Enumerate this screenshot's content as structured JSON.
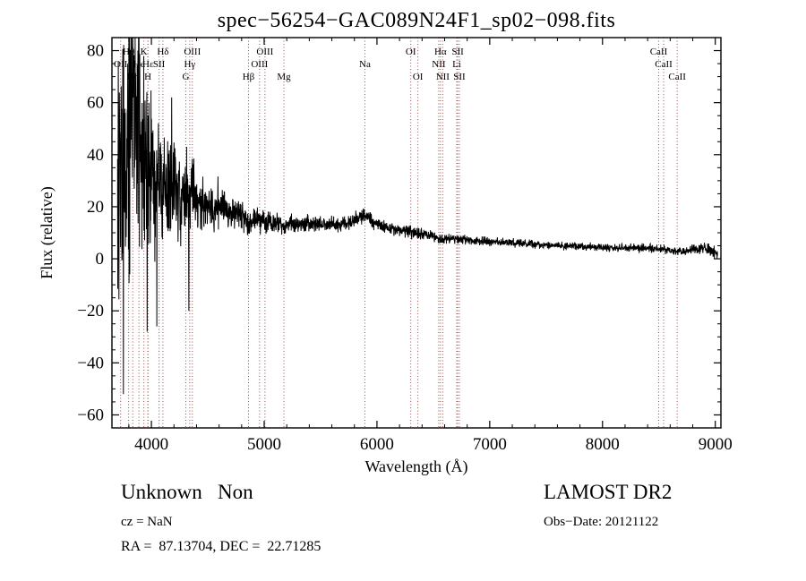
{
  "chart_data": {
    "type": "line",
    "title": "spec−56254−GAC089N24F1_sp02−098.fits",
    "xlabel": "Wavelength (Å)",
    "ylabel": "Flux (relative)",
    "xlim": [
      3650,
      9050
    ],
    "ylim": [
      -65,
      85
    ],
    "xticks": [
      4000,
      5000,
      6000,
      7000,
      8000,
      9000
    ],
    "yticks": [
      -60,
      -40,
      -20,
      0,
      20,
      40,
      60,
      80
    ],
    "x_minor_step": 200,
    "y_minor_step": 5,
    "grid": "off",
    "line_color": "#000000",
    "marker_color": "#9a4f4f",
    "spectral_lines": [
      {
        "label": "OII",
        "wl": 3727,
        "row": 2
      },
      {
        "label": "Hθ",
        "wl": 3798,
        "row": 1
      },
      {
        "label": "Hη",
        "wl": 3835,
        "row": 3
      },
      {
        "label": "He",
        "wl": 3889,
        "row": 2
      },
      {
        "label": "K",
        "wl": 3933,
        "row": 1
      },
      {
        "label": "H",
        "wl": 3968,
        "row": 3
      },
      {
        "label": "Hε",
        "wl": 3970,
        "row": 2
      },
      {
        "label": "SII",
        "wl": 4068,
        "row": 2
      },
      {
        "label": "Hδ",
        "wl": 4102,
        "row": 1
      },
      {
        "label": "G",
        "wl": 4305,
        "row": 3
      },
      {
        "label": "Hγ",
        "wl": 4340,
        "row": 2
      },
      {
        "label": "OIII",
        "wl": 4363,
        "row": 1
      },
      {
        "label": "Hβ",
        "wl": 4861,
        "row": 3
      },
      {
        "label": "OIII",
        "wl": 4959,
        "row": 2
      },
      {
        "label": "OIII",
        "wl": 5007,
        "row": 1
      },
      {
        "label": "Mg",
        "wl": 5175,
        "row": 3
      },
      {
        "label": "Na",
        "wl": 5893,
        "row": 2
      },
      {
        "label": "OI",
        "wl": 6300,
        "row": 1
      },
      {
        "label": "OI",
        "wl": 6363,
        "row": 3
      },
      {
        "label": "NII",
        "wl": 6548,
        "row": 2
      },
      {
        "label": "Hα",
        "wl": 6563,
        "row": 1
      },
      {
        "label": "NII",
        "wl": 6583,
        "row": 3
      },
      {
        "label": "Li",
        "wl": 6707,
        "row": 2
      },
      {
        "label": "SII",
        "wl": 6716,
        "row": 1
      },
      {
        "label": "SII",
        "wl": 6731,
        "row": 3
      },
      {
        "label": "CaII",
        "wl": 8498,
        "row": 1
      },
      {
        "label": "CaII",
        "wl": 8542,
        "row": 2
      },
      {
        "label": "CaII",
        "wl": 8662,
        "row": 3
      }
    ],
    "spectrum": {
      "x_start": 3700,
      "x_end": 9020,
      "x_step": 2,
      "seed": 20121122,
      "continuum": [
        [
          3700,
          25
        ],
        [
          3720,
          38
        ],
        [
          3750,
          42
        ],
        [
          3800,
          46
        ],
        [
          3850,
          50
        ],
        [
          3880,
          52
        ],
        [
          3900,
          48
        ],
        [
          3930,
          42
        ],
        [
          3960,
          36
        ],
        [
          4000,
          32
        ],
        [
          4040,
          29
        ],
        [
          4080,
          28
        ],
        [
          4102,
          26
        ],
        [
          4150,
          30
        ],
        [
          4200,
          27
        ],
        [
          4250,
          23
        ],
        [
          4300,
          21
        ],
        [
          4340,
          23
        ],
        [
          4380,
          24
        ],
        [
          4420,
          22
        ],
        [
          4470,
          21
        ],
        [
          4520,
          21
        ],
        [
          4570,
          20
        ],
        [
          4620,
          20
        ],
        [
          4700,
          19
        ],
        [
          4780,
          17
        ],
        [
          4830,
          15
        ],
        [
          4861,
          13
        ],
        [
          4900,
          15
        ],
        [
          4950,
          14.5
        ],
        [
          5000,
          14
        ],
        [
          5050,
          14
        ],
        [
          5100,
          13.5
        ],
        [
          5175,
          12.5
        ],
        [
          5230,
          13.5
        ],
        [
          5300,
          13.5
        ],
        [
          5400,
          13.5
        ],
        [
          5500,
          13
        ],
        [
          5600,
          13
        ],
        [
          5700,
          13.5
        ],
        [
          5800,
          15
        ],
        [
          5860,
          17
        ],
        [
          5900,
          16.5
        ],
        [
          5950,
          14.5
        ],
        [
          6000,
          13
        ],
        [
          6100,
          12
        ],
        [
          6200,
          11
        ],
        [
          6300,
          10
        ],
        [
          6400,
          9.5
        ],
        [
          6500,
          8.8
        ],
        [
          6563,
          7.2
        ],
        [
          6620,
          7.8
        ],
        [
          6700,
          7.5
        ],
        [
          6800,
          7.2
        ],
        [
          6900,
          6.8
        ],
        [
          7000,
          6.5
        ],
        [
          7100,
          6.2
        ],
        [
          7200,
          6
        ],
        [
          7300,
          5.8
        ],
        [
          7400,
          5.5
        ],
        [
          7500,
          5.3
        ],
        [
          7600,
          5.1
        ],
        [
          7700,
          4.9
        ],
        [
          7800,
          4.7
        ],
        [
          7900,
          4.6
        ],
        [
          8000,
          4.4
        ],
        [
          8100,
          4.3
        ],
        [
          8200,
          4.2
        ],
        [
          8300,
          4.1
        ],
        [
          8400,
          4
        ],
        [
          8500,
          3.8
        ],
        [
          8600,
          3.4
        ],
        [
          8680,
          2.6
        ],
        [
          8750,
          3.2
        ],
        [
          8820,
          3.8
        ],
        [
          8900,
          4.3
        ],
        [
          8950,
          3.3
        ],
        [
          9000,
          2.4
        ],
        [
          9020,
          2
        ]
      ],
      "noise_sigma": [
        [
          3700,
          22
        ],
        [
          3800,
          24
        ],
        [
          3900,
          24
        ],
        [
          3950,
          18
        ],
        [
          4000,
          13
        ],
        [
          4100,
          11
        ],
        [
          4200,
          9
        ],
        [
          4300,
          8
        ],
        [
          4400,
          5.5
        ],
        [
          4500,
          4.5
        ],
        [
          4600,
          4
        ],
        [
          4700,
          3.2
        ],
        [
          4800,
          2.6
        ],
        [
          4900,
          2.2
        ],
        [
          5000,
          2
        ],
        [
          5200,
          1.8
        ],
        [
          5400,
          1.7
        ],
        [
          5600,
          1.5
        ],
        [
          5800,
          1.4
        ],
        [
          6000,
          1.2
        ],
        [
          6300,
          1.1
        ],
        [
          6600,
          0.9
        ],
        [
          7000,
          0.8
        ],
        [
          7500,
          0.7
        ],
        [
          8000,
          0.7
        ],
        [
          8500,
          0.7
        ],
        [
          8800,
          0.9
        ],
        [
          9020,
          1.3
        ]
      ],
      "spikes": [
        [
          3752,
          -52
        ],
        [
          3790,
          75
        ],
        [
          3845,
          78
        ],
        [
          3880,
          80
        ],
        [
          3962,
          -28
        ],
        [
          4048,
          -26
        ],
        [
          4180,
          62
        ],
        [
          4332,
          -20
        ]
      ]
    }
  },
  "footer": {
    "classification": "Unknown   Non",
    "survey": "LAMOST DR2",
    "cz": "cz = NaN",
    "obs_date": "Obs−Date: 20121122",
    "ra_dec": "RA =  87.13704, DEC =  22.71285"
  }
}
